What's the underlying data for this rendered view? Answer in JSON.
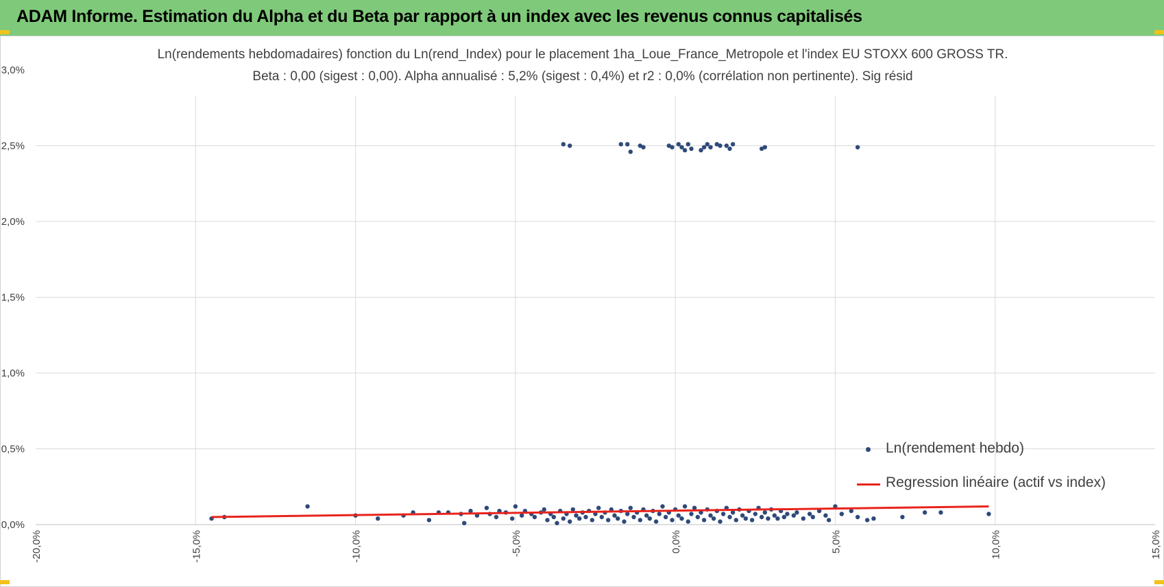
{
  "header": {
    "title": "ADAM Informe. Estimation du Alpha et du Beta par rapport à un index avec les revenus connus capitalisés"
  },
  "colors": {
    "banner": "#7fca7a",
    "points": "#2e4a7a",
    "regression": "#e8231c",
    "grid": "#d9d9d9",
    "corner": "#f2c21b"
  },
  "chart_data": {
    "type": "scatter",
    "title_line1": "Ln(rendements hebdomadaires) fonction du Ln(rend_Index) pour le placement 1ha_Loue_France_Metropole et l'index EU STOXX 600 GROSS TR.",
    "title_line2": "Beta : 0,00 (sigest : 0,00). Alpha annualisé : 5,2% (sigest : 0,4%) et r2 : 0,0% (corrélation non pertinente). Sig résid",
    "xlim": [
      -0.2,
      0.15
    ],
    "ylim": [
      0,
      0.03
    ],
    "x_ticks": [
      "-20,0%",
      "-15,0%",
      "-10,0%",
      "-5,0%",
      "0,0%",
      "5,0%",
      "10,0%",
      "15,0%"
    ],
    "y_ticks": [
      "0,0%",
      "0,5%",
      "1,0%",
      "1,5%",
      "2,0%",
      "2,5%",
      "3,0%"
    ],
    "grid": true,
    "legend_position": "bottom-right",
    "series": [
      {
        "name": "Ln(rendement hebdo)",
        "kind": "scatter",
        "points": [
          [
            -0.035,
            0.0251
          ],
          [
            -0.033,
            0.025
          ],
          [
            -0.017,
            0.0251
          ],
          [
            -0.015,
            0.0251
          ],
          [
            -0.014,
            0.0246
          ],
          [
            -0.011,
            0.025
          ],
          [
            -0.01,
            0.0249
          ],
          [
            -0.002,
            0.025
          ],
          [
            -0.001,
            0.0249
          ],
          [
            0.001,
            0.0251
          ],
          [
            0.002,
            0.0249
          ],
          [
            0.003,
            0.0247
          ],
          [
            0.004,
            0.0251
          ],
          [
            0.005,
            0.0248
          ],
          [
            0.008,
            0.0247
          ],
          [
            0.009,
            0.0249
          ],
          [
            0.01,
            0.0251
          ],
          [
            0.011,
            0.0249
          ],
          [
            0.013,
            0.0251
          ],
          [
            0.014,
            0.025
          ],
          [
            0.016,
            0.025
          ],
          [
            0.017,
            0.0248
          ],
          [
            0.018,
            0.0251
          ],
          [
            0.027,
            0.0248
          ],
          [
            0.028,
            0.0249
          ],
          [
            0.057,
            0.0249
          ],
          [
            -0.145,
            0.0004
          ],
          [
            -0.141,
            0.0005
          ],
          [
            -0.115,
            0.0012
          ],
          [
            -0.1,
            0.0006
          ],
          [
            -0.093,
            0.0004
          ],
          [
            -0.085,
            0.0006
          ],
          [
            -0.082,
            0.0008
          ],
          [
            -0.077,
            0.0003
          ],
          [
            -0.074,
            0.0008
          ],
          [
            -0.071,
            0.0008
          ],
          [
            -0.067,
            0.0007
          ],
          [
            -0.066,
            0.0001
          ],
          [
            -0.064,
            0.0009
          ],
          [
            -0.062,
            0.0006
          ],
          [
            -0.059,
            0.0011
          ],
          [
            -0.058,
            0.0007
          ],
          [
            -0.056,
            0.0005
          ],
          [
            -0.055,
            0.0009
          ],
          [
            -0.053,
            0.0008
          ],
          [
            -0.051,
            0.0004
          ],
          [
            -0.05,
            0.0012
          ],
          [
            -0.048,
            0.0006
          ],
          [
            -0.047,
            0.0009
          ],
          [
            -0.045,
            0.0007
          ],
          [
            -0.044,
            0.0005
          ],
          [
            -0.042,
            0.0008
          ],
          [
            -0.041,
            0.001
          ],
          [
            -0.04,
            0.0003
          ],
          [
            -0.039,
            0.0007
          ],
          [
            -0.038,
            0.0005
          ],
          [
            -0.037,
            0.0001
          ],
          [
            -0.036,
            0.0009
          ],
          [
            -0.035,
            0.0004
          ],
          [
            -0.034,
            0.0007
          ],
          [
            -0.033,
            0.0002
          ],
          [
            -0.032,
            0.001
          ],
          [
            -0.031,
            0.0006
          ],
          [
            -0.03,
            0.0004
          ],
          [
            -0.029,
            0.0008
          ],
          [
            -0.028,
            0.0005
          ],
          [
            -0.027,
            0.0009
          ],
          [
            -0.026,
            0.0003
          ],
          [
            -0.025,
            0.0007
          ],
          [
            -0.024,
            0.0011
          ],
          [
            -0.023,
            0.0005
          ],
          [
            -0.022,
            0.0008
          ],
          [
            -0.021,
            0.0003
          ],
          [
            -0.02,
            0.001
          ],
          [
            -0.019,
            0.0006
          ],
          [
            -0.018,
            0.0004
          ],
          [
            -0.017,
            0.0009
          ],
          [
            -0.016,
            0.0002
          ],
          [
            -0.015,
            0.0007
          ],
          [
            -0.014,
            0.0011
          ],
          [
            -0.013,
            0.0005
          ],
          [
            -0.012,
            0.0008
          ],
          [
            -0.011,
            0.0003
          ],
          [
            -0.01,
            0.001
          ],
          [
            -0.009,
            0.0006
          ],
          [
            -0.008,
            0.0004
          ],
          [
            -0.007,
            0.0009
          ],
          [
            -0.006,
            0.0002
          ],
          [
            -0.005,
            0.0007
          ],
          [
            -0.004,
            0.0012
          ],
          [
            -0.003,
            0.0005
          ],
          [
            -0.002,
            0.0008
          ],
          [
            -0.001,
            0.0003
          ],
          [
            0.0,
            0.001
          ],
          [
            0.001,
            0.0006
          ],
          [
            0.002,
            0.0004
          ],
          [
            0.003,
            0.0012
          ],
          [
            0.004,
            0.0002
          ],
          [
            0.005,
            0.0007
          ],
          [
            0.006,
            0.0011
          ],
          [
            0.007,
            0.0005
          ],
          [
            0.008,
            0.0008
          ],
          [
            0.009,
            0.0003
          ],
          [
            0.01,
            0.001
          ],
          [
            0.011,
            0.0006
          ],
          [
            0.012,
            0.0004
          ],
          [
            0.013,
            0.0009
          ],
          [
            0.014,
            0.0002
          ],
          [
            0.015,
            0.0007
          ],
          [
            0.016,
            0.0011
          ],
          [
            0.017,
            0.0005
          ],
          [
            0.018,
            0.0008
          ],
          [
            0.019,
            0.0003
          ],
          [
            0.02,
            0.001
          ],
          [
            0.021,
            0.0006
          ],
          [
            0.022,
            0.0004
          ],
          [
            0.023,
            0.0009
          ],
          [
            0.024,
            0.0003
          ],
          [
            0.025,
            0.0007
          ],
          [
            0.026,
            0.0011
          ],
          [
            0.027,
            0.0005
          ],
          [
            0.028,
            0.0008
          ],
          [
            0.029,
            0.0004
          ],
          [
            0.03,
            0.001
          ],
          [
            0.031,
            0.0006
          ],
          [
            0.032,
            0.0004
          ],
          [
            0.033,
            0.0009
          ],
          [
            0.034,
            0.0005
          ],
          [
            0.035,
            0.0007
          ],
          [
            0.037,
            0.0006
          ],
          [
            0.038,
            0.0008
          ],
          [
            0.04,
            0.0004
          ],
          [
            0.042,
            0.0007
          ],
          [
            0.043,
            0.0005
          ],
          [
            0.045,
            0.0009
          ],
          [
            0.047,
            0.0006
          ],
          [
            0.048,
            0.0003
          ],
          [
            0.05,
            0.0012
          ],
          [
            0.052,
            0.0007
          ],
          [
            0.055,
            0.0009
          ],
          [
            0.057,
            0.0005
          ],
          [
            0.06,
            0.0003
          ],
          [
            0.062,
            0.0004
          ],
          [
            0.071,
            0.0005
          ],
          [
            0.078,
            0.0008
          ],
          [
            0.083,
            0.0008
          ],
          [
            0.098,
            0.0007
          ]
        ]
      },
      {
        "name": "Regression linéaire (actif vs index)",
        "kind": "line",
        "points": [
          [
            -0.145,
            0.0005
          ],
          [
            0.098,
            0.0012
          ]
        ]
      }
    ]
  }
}
